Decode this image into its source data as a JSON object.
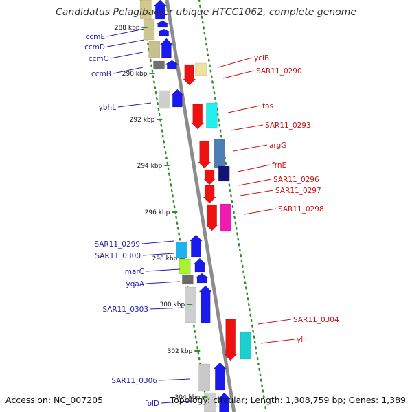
{
  "title": "Candidatus Pelagibacter ubique HTCC1062, complete genome",
  "footer": {
    "accession": "Accession: NC_007205",
    "summary": "Topology: circular; Length: 1,308,759 bp; Genes: 1,389"
  },
  "colors": {
    "backbone": "#8c8c8c",
    "gc_dots": "#2e8b2e",
    "forward_label": "#2020b0",
    "reverse_label": "#cc1111",
    "forward_gene": "#1a1aee",
    "reverse_gene": "#ee1111"
  },
  "ticks": [
    "288 kbp",
    "290 kbp",
    "292 kbp",
    "294 kbp",
    "296 kbp",
    "298 kbp",
    "300 kbp",
    "302 kbp",
    "304 kbp"
  ],
  "forward_labels": [
    "ccmE",
    "ccmD",
    "ccmC",
    "ccmB",
    "ybhL",
    "SAR11_0299",
    "SAR11_0300",
    "marC",
    "yqaA",
    "SAR11_0303",
    "SAR11_0306",
    "folD"
  ],
  "reverse_labels": [
    "yciB",
    "SAR11_0290",
    "tas",
    "SAR11_0293",
    "argG",
    "frnE",
    "SAR11_0296",
    "SAR11_0297",
    "SAR11_0298",
    "SAR11_0304",
    "yliI"
  ]
}
